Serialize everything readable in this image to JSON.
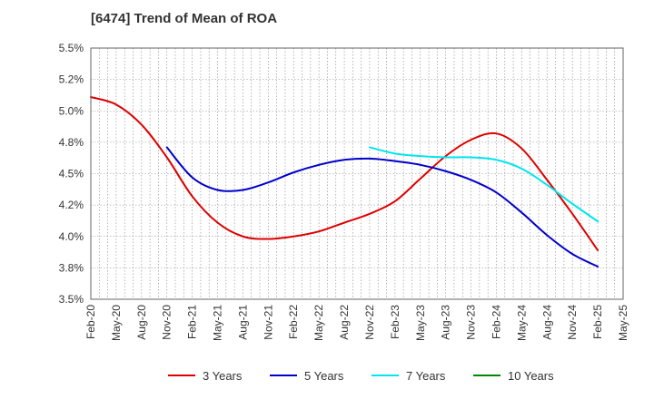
{
  "chart_data": {
    "type": "line",
    "title": "[6474]  Trend of Mean of ROA",
    "xlabel": "",
    "ylabel": "",
    "x_ticks": [
      "Feb-20",
      "May-20",
      "Aug-20",
      "Nov-20",
      "Feb-21",
      "May-21",
      "Aug-21",
      "Nov-21",
      "Feb-22",
      "May-22",
      "Aug-22",
      "Nov-22",
      "Feb-23",
      "May-23",
      "Aug-23",
      "Nov-23",
      "Feb-24",
      "May-24",
      "Aug-24",
      "Nov-24",
      "Feb-25",
      "May-25"
    ],
    "y_ticks": [
      "3.5%",
      "3.8%",
      "4.0%",
      "4.2%",
      "4.5%",
      "4.8%",
      "5.0%",
      "5.2%",
      "5.5%"
    ],
    "ylim": [
      3.5,
      5.5
    ],
    "grid": true,
    "legend_position": "bottom",
    "series": [
      {
        "name": "3 Years",
        "color": "#dd0000",
        "values": [
          5.11,
          5.05,
          4.89,
          4.63,
          4.32,
          4.11,
          4.0,
          3.98,
          4.0,
          4.04,
          4.11,
          4.18,
          4.28,
          4.46,
          4.64,
          4.77,
          4.82,
          4.7,
          4.45,
          4.18,
          3.89
        ]
      },
      {
        "name": "5 Years",
        "color": "#0000cc",
        "values": [
          null,
          null,
          null,
          4.71,
          4.47,
          4.37,
          4.37,
          4.43,
          4.51,
          4.57,
          4.61,
          4.62,
          4.6,
          4.57,
          4.52,
          4.45,
          4.35,
          4.19,
          4.01,
          3.86,
          3.76
        ]
      },
      {
        "name": "7 Years",
        "color": "#00e5ee",
        "values": [
          null,
          null,
          null,
          null,
          null,
          null,
          null,
          null,
          null,
          null,
          null,
          4.71,
          4.66,
          4.64,
          4.63,
          4.63,
          4.61,
          4.54,
          4.41,
          4.26,
          4.12
        ]
      },
      {
        "name": "10 Years",
        "color": "#008800",
        "values": []
      }
    ]
  }
}
